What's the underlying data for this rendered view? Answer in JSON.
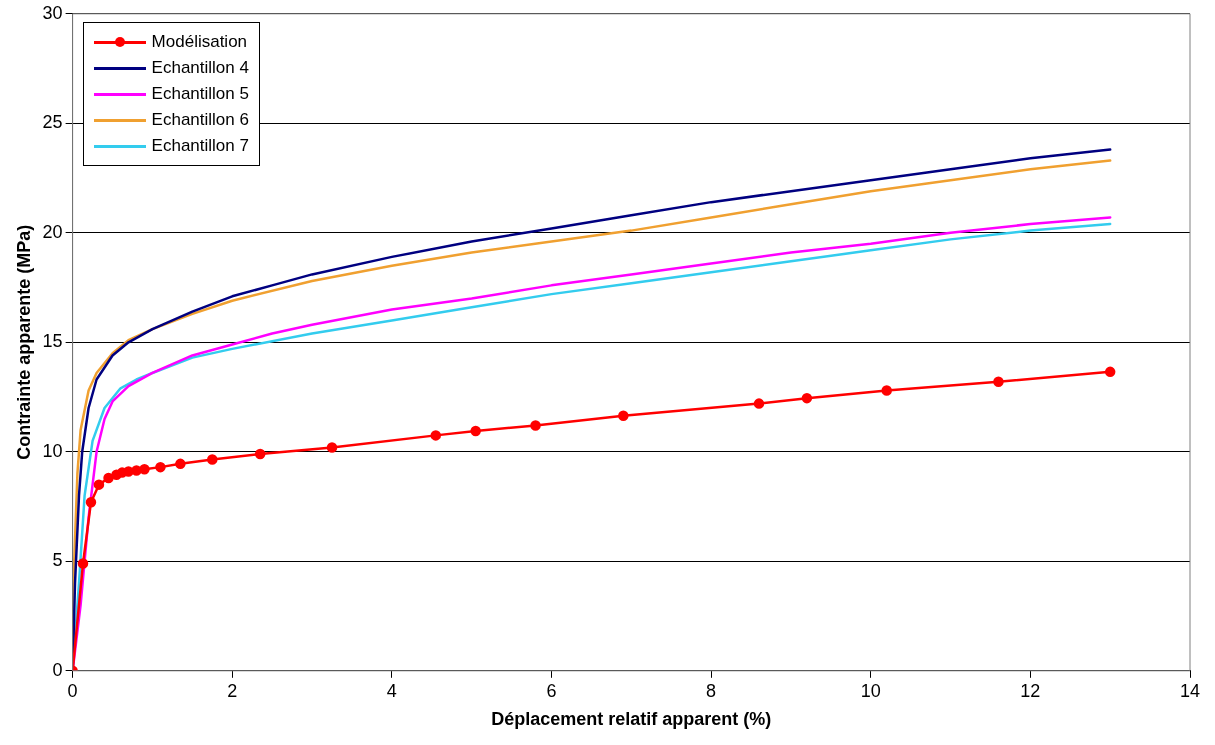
{
  "chart_data": {
    "type": "line",
    "xlabel": "Déplacement relatif apparent (%)",
    "ylabel": "Contrainte apparente (MPa)",
    "xlim": [
      0,
      14
    ],
    "xticks": [
      0,
      2,
      4,
      6,
      8,
      10,
      12,
      14
    ],
    "ylim": [
      0,
      30
    ],
    "yticks": [
      0,
      5,
      10,
      15,
      20,
      25,
      30
    ],
    "grid": "y",
    "legend": "top left",
    "line_style": "solid",
    "series": [
      {
        "name": "Modélisation",
        "color": "#ff0000",
        "marker": "circle",
        "x": [
          0,
          0.13,
          0.23,
          0.33,
          0.45,
          0.55,
          0.62,
          0.7,
          0.8,
          0.9,
          1.1,
          1.35,
          1.75,
          2.35,
          3.25,
          4.55,
          5.05,
          5.8,
          6.9,
          8.6,
          9.2,
          10.2,
          11.6,
          13.0
        ],
        "values": [
          0,
          4.9,
          7.7,
          8.5,
          8.8,
          8.95,
          9.05,
          9.1,
          9.15,
          9.2,
          9.3,
          9.45,
          9.65,
          9.9,
          10.2,
          10.75,
          10.95,
          11.2,
          11.65,
          12.2,
          12.45,
          12.8,
          13.2,
          13.65
        ]
      },
      {
        "name": "Echantillon 4",
        "color": "#000080",
        "marker": "none",
        "x": [
          0,
          0.03,
          0.08,
          0.12,
          0.2,
          0.3,
          0.5,
          0.7,
          1,
          1.5,
          2,
          2.5,
          3,
          4,
          5,
          6,
          7,
          8,
          9,
          10,
          11,
          12,
          13
        ],
        "values": [
          0,
          4,
          8,
          10,
          12,
          13.3,
          14.4,
          15,
          15.6,
          16.4,
          17.1,
          17.6,
          18.1,
          18.9,
          19.6,
          20.2,
          20.8,
          21.4,
          21.9,
          22.4,
          22.9,
          23.4,
          23.8
        ]
      },
      {
        "name": "Echantillon 5",
        "color": "#ff00ff",
        "marker": "none",
        "x": [
          0,
          0.1,
          0.2,
          0.3,
          0.4,
          0.5,
          0.7,
          1,
          1.5,
          2,
          2.5,
          3,
          4,
          5,
          6,
          7,
          8,
          9,
          10,
          11,
          12,
          13
        ],
        "values": [
          0,
          3,
          7,
          10,
          11.5,
          12.3,
          13,
          13.6,
          14.4,
          14.9,
          15.4,
          15.8,
          16.5,
          17,
          17.6,
          18.1,
          18.6,
          19.1,
          19.5,
          20,
          20.4,
          20.7
        ]
      },
      {
        "name": "Echantillon 6",
        "color": "#f0a030",
        "marker": "none",
        "x": [
          0,
          0.02,
          0.06,
          0.1,
          0.2,
          0.3,
          0.5,
          0.7,
          1,
          1.5,
          2,
          3,
          4,
          5,
          6,
          7,
          8,
          9,
          10,
          11,
          12,
          13
        ],
        "values": [
          0,
          5,
          9,
          11,
          12.8,
          13.6,
          14.5,
          15.1,
          15.6,
          16.3,
          16.9,
          17.8,
          18.5,
          19.1,
          19.6,
          20.1,
          20.7,
          21.3,
          21.9,
          22.4,
          22.9,
          23.3
        ]
      },
      {
        "name": "Echantillon 7",
        "color": "#33ccee",
        "marker": "none",
        "x": [
          0,
          0.08,
          0.15,
          0.25,
          0.4,
          0.6,
          0.8,
          1,
          1.5,
          2,
          3,
          4,
          5,
          6,
          7,
          8,
          9,
          10,
          11,
          12,
          13
        ],
        "values": [
          0,
          4,
          8,
          10.5,
          12,
          12.9,
          13.3,
          13.6,
          14.3,
          14.7,
          15.4,
          16,
          16.6,
          17.2,
          17.7,
          18.2,
          18.7,
          19.2,
          19.7,
          20.1,
          20.4
        ]
      }
    ]
  }
}
